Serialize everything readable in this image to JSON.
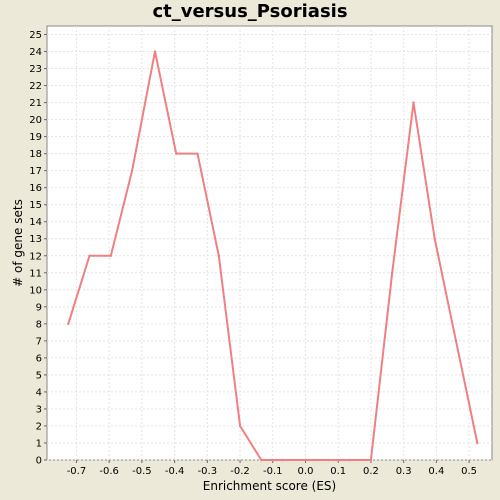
{
  "chart_data": {
    "type": "line",
    "title": "ct_versus_Psoriasis",
    "xlabel": "Enrichment score (ES)",
    "ylabel": "# of gene sets",
    "xlim": [
      -0.79,
      0.57
    ],
    "ylim": [
      0,
      25.5
    ],
    "x_ticks": [
      -0.7,
      -0.6,
      -0.5,
      -0.4,
      -0.3,
      -0.2,
      -0.1,
      0.0,
      0.1,
      0.2,
      0.3,
      0.4,
      0.5
    ],
    "x_tick_labels": [
      "-0.7",
      "-0.6",
      "-0.5",
      "-0.4",
      "-0.3",
      "-0.2",
      "-0.1",
      "0.0",
      "0.1",
      "0.2",
      "0.3",
      "0.4",
      "0.5"
    ],
    "y_ticks": [
      0,
      1,
      2,
      3,
      4,
      5,
      6,
      7,
      8,
      9,
      10,
      11,
      12,
      13,
      14,
      15,
      16,
      17,
      18,
      19,
      20,
      21,
      22,
      23,
      24,
      25
    ],
    "grid": true,
    "series": [
      {
        "color": "#f08080",
        "x": [
          -0.725,
          -0.66,
          -0.595,
          -0.53,
          -0.46,
          -0.395,
          -0.33,
          -0.265,
          -0.2,
          -0.135,
          -0.07,
          0.0,
          0.07,
          0.135,
          0.2,
          0.265,
          0.33,
          0.395,
          0.46,
          0.525
        ],
        "y": [
          8,
          12,
          12,
          17,
          24,
          18,
          18,
          12,
          2,
          0,
          0,
          0,
          0,
          0,
          0,
          11,
          21,
          13,
          7,
          1
        ]
      }
    ]
  },
  "colors": {
    "background": "#ece9d8",
    "plot_background": "#ffffff",
    "grid": "#e4e4e4",
    "line": "#f08080"
  }
}
